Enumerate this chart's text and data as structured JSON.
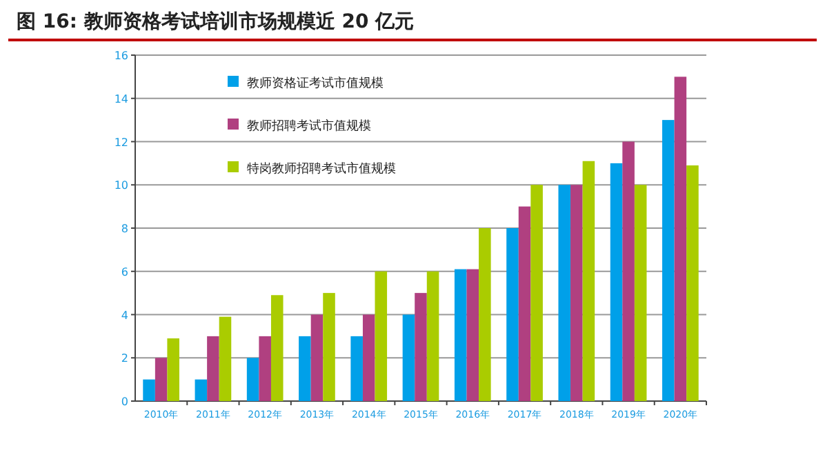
{
  "chart_data": {
    "type": "bar",
    "title": "图 16:  教师资格考试培训市场规模近 20 亿元",
    "categories": [
      "2010年",
      "2011年",
      "2012年",
      "2013年",
      "2014年",
      "2015年",
      "2016年",
      "2017年",
      "2018年",
      "2019年",
      "2020年"
    ],
    "series": [
      {
        "name": "教师资格证考试市值规模",
        "color": "#00a0e9",
        "values": [
          1,
          1,
          2,
          3,
          3,
          4,
          6.1,
          8,
          10,
          11,
          13
        ]
      },
      {
        "name": "教师招聘考试市值规模",
        "color": "#b04080",
        "values": [
          2,
          3,
          3,
          4,
          4,
          5,
          6.1,
          9,
          10,
          12,
          15
        ]
      },
      {
        "name": "特岗教师招聘考试市值规模",
        "color": "#aacc00",
        "values": [
          2.9,
          3.9,
          4.9,
          5,
          6,
          6,
          8,
          10,
          11.1,
          10,
          10.9
        ]
      }
    ],
    "ylim": [
      0,
      16
    ],
    "yticks": [
      0,
      2,
      4,
      6,
      8,
      10,
      12,
      14,
      16
    ],
    "grid": "y",
    "legend": "top left"
  }
}
